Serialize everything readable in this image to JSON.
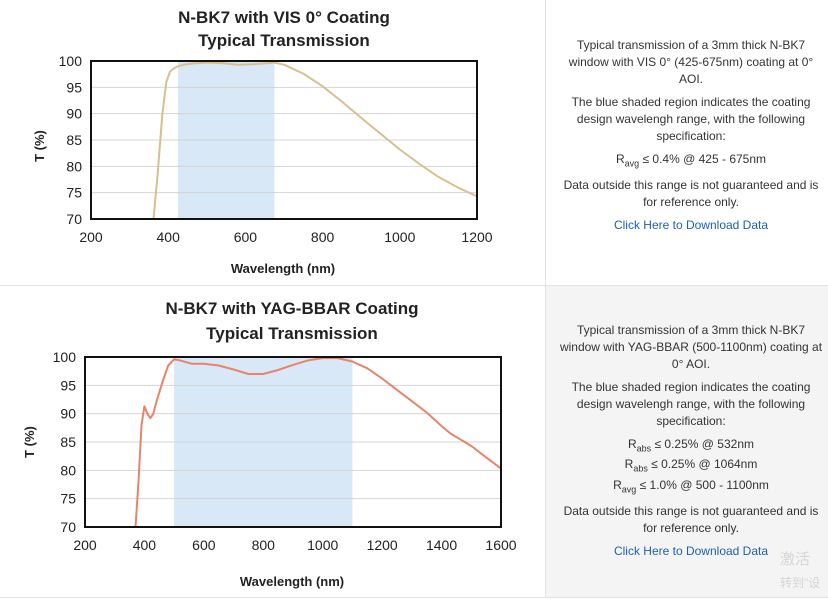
{
  "panels": [
    {
      "chart_data": {
        "type": "line",
        "title": "N-BK7 with VIS 0° Coating",
        "subtitle": "Typical Transmission",
        "xlabel": "Wavelength (nm)",
        "ylabel": "T (%)",
        "xlim": [
          200,
          1200
        ],
        "ylim": [
          70,
          100
        ],
        "xticks": [
          200,
          400,
          600,
          800,
          1000,
          1200
        ],
        "yticks": [
          70,
          75,
          80,
          85,
          90,
          95,
          100
        ],
        "grid": true,
        "shaded_region": [
          425,
          675
        ],
        "series": [
          {
            "color": "#d8bf8f",
            "x": [
              362,
              372,
              385,
              395,
              405,
              415,
              425,
              440,
              460,
              480,
              500,
              540,
              580,
              620,
              660,
              675,
              700,
              750,
              800,
              850,
              900,
              950,
              1000,
              1050,
              1100,
              1150,
              1200
            ],
            "y": [
              70,
              78,
              90,
              96,
              98,
              98.6,
              99,
              99.3,
              99.5,
              99.6,
              99.7,
              99.6,
              99.3,
              99.4,
              99.6,
              99.7,
              99.3,
              97.6,
              95.2,
              92.3,
              89.2,
              86.2,
              83.2,
              80.5,
              78,
              76,
              74.3
            ]
          }
        ]
      },
      "info": {
        "description": "Typical transmission of a 3mm thick N-BK7 window with VIS 0° (425-675nm) coating at 0° AOI.",
        "shaded_note": "The blue shaded region indicates the coating design wavelengh range, with the following specification:",
        "specs": [
          {
            "symbol": "R",
            "sub": "avg",
            "text": " ≤ 0.4% @ 425 - 675nm"
          }
        ],
        "disclaimer": "Data outside this range is not guaranteed and is for reference only.",
        "download_link": "Click Here to Download Data"
      }
    },
    {
      "chart_data": {
        "type": "line",
        "title": "N-BK7 with YAG-BBAR Coating",
        "subtitle": "Typical Transmission",
        "xlabel": "Wavelength (nm)",
        "ylabel": "T (%)",
        "xlim": [
          200,
          1600
        ],
        "ylim": [
          70,
          100
        ],
        "xticks": [
          200,
          400,
          600,
          800,
          1000,
          1200,
          1400,
          1600
        ],
        "yticks": [
          70,
          75,
          80,
          85,
          90,
          95,
          100
        ],
        "grid": true,
        "shaded_region": [
          500,
          1100
        ],
        "series": [
          {
            "color": "#e8836c",
            "x": [
              370,
              380,
              390,
              400,
              410,
              420,
              430,
              440,
              460,
              480,
              500,
              520,
              560,
              600,
              650,
              700,
              750,
              800,
              850,
              900,
              950,
              1000,
              1050,
              1100,
              1150,
              1200,
              1250,
              1300,
              1350,
              1400,
              1430,
              1500,
              1550,
              1600
            ],
            "y": [
              70,
              78,
              88,
              91.3,
              90,
              89.2,
              90,
              92,
              95.5,
              98.5,
              99.6,
              99.4,
              98.8,
              98.8,
              98.5,
              97.8,
              97,
              97,
              97.7,
              98.6,
              99.4,
              99.8,
              99.8,
              99.2,
              98,
              96.2,
              94.2,
              92.2,
              90.2,
              87.8,
              86.5,
              84.3,
              82.3,
              80.3
            ]
          }
        ]
      },
      "info": {
        "description": "Typical transmission of a 3mm thick N-BK7 window with YAG-BBAR (500-1100nm) coating at 0° AOI.",
        "shaded_note": "The blue shaded region indicates the coating design wavelengh range, with the following specification:",
        "specs": [
          {
            "symbol": "R",
            "sub": "abs",
            "text": " ≤ 0.25% @ 532nm"
          },
          {
            "symbol": "R",
            "sub": "abs",
            "text": " ≤ 0.25% @ 1064nm"
          },
          {
            "symbol": "R",
            "sub": "avg",
            "text": " ≤ 1.0% @ 500 - 1100nm"
          }
        ],
        "disclaimer": "Data outside this range is not guaranteed and is for reference only.",
        "download_link": "Click Here to Download Data"
      }
    }
  ],
  "watermark": {
    "line1": "激活",
    "line2": "转到\"设"
  },
  "colors": {
    "shade": "#d9e8f6",
    "grid": "#d4d4d4",
    "link": "#1f5fb0"
  }
}
